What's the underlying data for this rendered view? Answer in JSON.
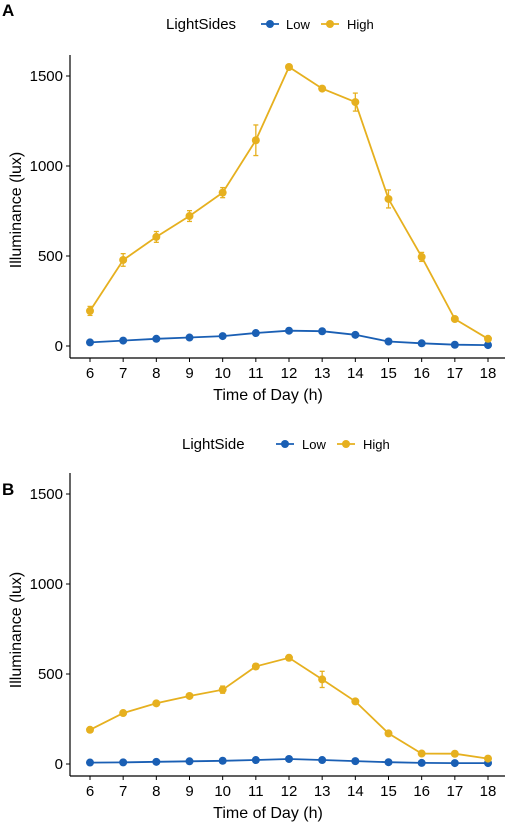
{
  "colors": {
    "low": "#1a5fb4",
    "high": "#e6b01f",
    "axis": "#000000"
  },
  "chart_data": [
    {
      "type": "line",
      "panel": "A",
      "legend_title": "LightSides",
      "legend_position": "top",
      "xlabel": "Time of Day (h)",
      "ylabel": "Illuminance (lux)",
      "xlim": [
        6,
        18
      ],
      "ylim": [
        0,
        1500
      ],
      "x": [
        6,
        7,
        8,
        9,
        10,
        11,
        12,
        13,
        14,
        15,
        16,
        17,
        18
      ],
      "x_ticks": [
        "6",
        "7",
        "8",
        "9",
        "10",
        "11",
        "12",
        "13",
        "14",
        "15",
        "16",
        "17",
        "18"
      ],
      "y_ticks": [
        "0",
        "500",
        "1000",
        "1500"
      ],
      "grid": false,
      "series": [
        {
          "name": "Low",
          "color": "#1a5fb4",
          "values": [
            20,
            30,
            40,
            47,
            55,
            72,
            85,
            82,
            62,
            25,
            15,
            7,
            5
          ],
          "errors": [
            0,
            0,
            0,
            0,
            0,
            0,
            0,
            0,
            0,
            0,
            0,
            0,
            0
          ]
        },
        {
          "name": "High",
          "color": "#e6b01f",
          "values": [
            195,
            478,
            606,
            722,
            852,
            1143,
            1550,
            1430,
            1355,
            817,
            495,
            150,
            40
          ],
          "errors": [
            25,
            35,
            30,
            30,
            28,
            85,
            12,
            10,
            50,
            50,
            25,
            10,
            5
          ]
        }
      ]
    },
    {
      "type": "line",
      "panel": "B",
      "legend_title": "LightSide",
      "legend_position": "top",
      "xlabel": "Time of Day (h)",
      "ylabel": "Illuminance (lux)",
      "xlim": [
        6,
        18
      ],
      "ylim": [
        0,
        1500
      ],
      "x": [
        6,
        7,
        8,
        9,
        10,
        11,
        12,
        13,
        14,
        15,
        16,
        17,
        18
      ],
      "x_ticks": [
        "6",
        "7",
        "8",
        "9",
        "10",
        "11",
        "12",
        "13",
        "14",
        "15",
        "16",
        "17",
        "18"
      ],
      "y_ticks": [
        "0",
        "500",
        "1000",
        "1500"
      ],
      "grid": false,
      "series": [
        {
          "name": "Low",
          "color": "#1a5fb4",
          "values": [
            8,
            9,
            12,
            15,
            18,
            22,
            28,
            22,
            16,
            10,
            6,
            5,
            5
          ],
          "errors": [
            0,
            0,
            0,
            0,
            0,
            0,
            0,
            0,
            0,
            0,
            0,
            0,
            0
          ]
        },
        {
          "name": "High",
          "color": "#e6b01f",
          "values": [
            190,
            283,
            337,
            378,
            413,
            542,
            590,
            470,
            348,
            170,
            58,
            57,
            30
          ],
          "errors": [
            8,
            10,
            10,
            10,
            20,
            15,
            15,
            45,
            12,
            8,
            5,
            5,
            5
          ]
        }
      ]
    }
  ]
}
